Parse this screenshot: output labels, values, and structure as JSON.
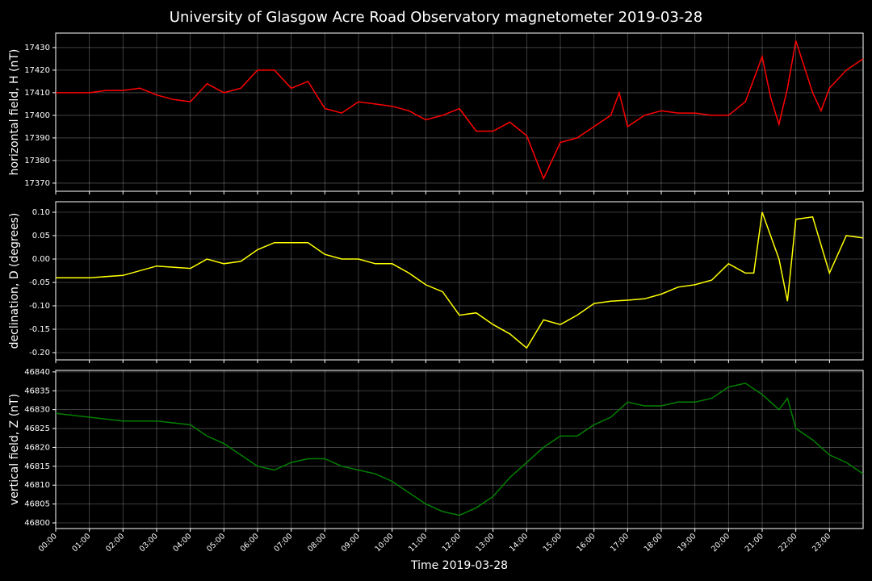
{
  "title": "University of Glasgow Acre Road Observatory magnetometer 2019-03-28",
  "chart_data": [
    {
      "type": "line",
      "ylabel": "horizontal field, H (nT)",
      "color": "#ff0000",
      "grid": true,
      "x": [
        0,
        0.5,
        1,
        1.5,
        2,
        2.5,
        3,
        3.5,
        4,
        4.5,
        5,
        5.5,
        6,
        6.5,
        7,
        7.5,
        8,
        8.5,
        9,
        9.5,
        10,
        10.5,
        11,
        11.5,
        12,
        12.5,
        13,
        13.5,
        14,
        14.5,
        15,
        15.5,
        16,
        16.5,
        16.75,
        17,
        17.5,
        18,
        18.5,
        19,
        19.5,
        20,
        20.5,
        21,
        21.25,
        21.5,
        21.75,
        22,
        22.5,
        22.75,
        23,
        23.5,
        24
      ],
      "values": [
        17410,
        17410,
        17410,
        17411,
        17411,
        17412,
        17409,
        17407,
        17406,
        17414,
        17410,
        17412,
        17420,
        17420,
        17412,
        17415,
        17403,
        17401,
        17406,
        17405,
        17404,
        17402,
        17398,
        17400,
        17403,
        17393,
        17393,
        17397,
        17391,
        17372,
        17388,
        17390,
        17395,
        17400,
        17410,
        17395,
        17400,
        17402,
        17401,
        17401,
        17400,
        17400,
        17406,
        17426,
        17408,
        17396,
        17412,
        17433,
        17410,
        17402,
        17412,
        17420,
        17425
      ],
      "xlim": [
        0,
        24
      ],
      "xticks": [
        0,
        1,
        2,
        3,
        4,
        5,
        6,
        7,
        8,
        9,
        10,
        11,
        12,
        13,
        14,
        15,
        16,
        17,
        18,
        19,
        20,
        21,
        22,
        23
      ],
      "ylim": [
        17366.4,
        17436.4
      ],
      "yticks": [
        17370,
        17380,
        17390,
        17400,
        17410,
        17420,
        17430
      ]
    },
    {
      "type": "line",
      "ylabel": "declination, D (degrees)",
      "color": "#ffff00",
      "grid": true,
      "x": [
        0,
        1,
        2,
        3,
        4,
        4.5,
        5,
        5.5,
        6,
        6.5,
        7,
        7.5,
        8,
        8.5,
        9,
        9.5,
        10,
        10.5,
        11,
        11.5,
        12,
        12.5,
        13,
        13.5,
        14,
        14.5,
        15,
        15.5,
        16,
        16.5,
        17,
        17.5,
        18,
        18.5,
        19,
        19.5,
        20,
        20.5,
        20.75,
        21,
        21.5,
        21.75,
        22,
        22.5,
        23,
        23.5,
        24
      ],
      "values": [
        -0.04,
        -0.04,
        -0.035,
        -0.015,
        -0.02,
        0,
        -0.01,
        -0.005,
        0.02,
        0.035,
        0.035,
        0.035,
        0.01,
        0,
        0,
        -0.01,
        -0.01,
        -0.03,
        -0.055,
        -0.07,
        -0.12,
        -0.115,
        -0.14,
        -0.16,
        -0.19,
        -0.13,
        -0.14,
        -0.12,
        -0.095,
        -0.09,
        -0.088,
        -0.085,
        -0.075,
        -0.06,
        -0.055,
        -0.045,
        -0.01,
        -0.03,
        -0.03,
        0.1,
        0,
        -0.09,
        0.085,
        0.09,
        -0.03,
        0.05,
        0.045
      ],
      "xlim": [
        0,
        24
      ],
      "xticks": [
        0,
        1,
        2,
        3,
        4,
        5,
        6,
        7,
        8,
        9,
        10,
        11,
        12,
        13,
        14,
        15,
        16,
        17,
        18,
        19,
        20,
        21,
        22,
        23
      ],
      "ylim": [
        -0.2155,
        0.1224
      ],
      "yticks": [
        {
          "value": -0.2,
          "label": "-0.20"
        },
        {
          "value": -0.15,
          "label": "-0.15"
        },
        {
          "value": -0.1,
          "label": "-0.10"
        },
        {
          "value": -0.05,
          "label": "-0.05"
        },
        {
          "value": 0,
          "label": "0.00"
        },
        {
          "value": 0.05,
          "label": "0.05"
        },
        {
          "value": 0.1,
          "label": "0.10"
        }
      ]
    },
    {
      "type": "line",
      "ylabel": "vertical field, Z (nT)",
      "xlabel": "Time 2019-03-28",
      "color": "#008000",
      "grid": true,
      "x": [
        0,
        1,
        2,
        3,
        4,
        4.5,
        5,
        5.5,
        6,
        6.5,
        7,
        7.5,
        8,
        8.5,
        9,
        9.5,
        10,
        10.5,
        11,
        11.5,
        12,
        12.5,
        13,
        13.5,
        14,
        14.5,
        15,
        15.5,
        16,
        16.5,
        17,
        17.5,
        18,
        18.5,
        19,
        19.5,
        20,
        20.5,
        21,
        21.5,
        21.75,
        22,
        22.5,
        23,
        23.5,
        24
      ],
      "values": [
        46829,
        46828,
        46827,
        46827,
        46826,
        46823,
        46821,
        46818,
        46815,
        46814,
        46816,
        46817,
        46817,
        46815,
        46814,
        46813,
        46811,
        46808,
        46805,
        46803,
        46802,
        46804,
        46807,
        46812,
        46816,
        46820,
        46823,
        46823,
        46826,
        46828,
        46832,
        46831,
        46831,
        46832,
        46832,
        46833,
        46836,
        46837,
        46834,
        46830,
        46833,
        46825,
        46822,
        46818,
        46816,
        46813
      ],
      "xlim": [
        0,
        24
      ],
      "xticks": [
        {
          "value": 0,
          "label": "00:00"
        },
        {
          "value": 1,
          "label": "01:00"
        },
        {
          "value": 2,
          "label": "02:00"
        },
        {
          "value": 3,
          "label": "03:00"
        },
        {
          "value": 4,
          "label": "04:00"
        },
        {
          "value": 5,
          "label": "05:00"
        },
        {
          "value": 6,
          "label": "06:00"
        },
        {
          "value": 7,
          "label": "07:00"
        },
        {
          "value": 8,
          "label": "08:00"
        },
        {
          "value": 9,
          "label": "09:00"
        },
        {
          "value": 10,
          "label": "10:00"
        },
        {
          "value": 11,
          "label": "11:00"
        },
        {
          "value": 12,
          "label": "12:00"
        },
        {
          "value": 13,
          "label": "13:00"
        },
        {
          "value": 14,
          "label": "14:00"
        },
        {
          "value": 15,
          "label": "15:00"
        },
        {
          "value": 16,
          "label": "16:00"
        },
        {
          "value": 17,
          "label": "17:00"
        },
        {
          "value": 18,
          "label": "18:00"
        },
        {
          "value": 19,
          "label": "19:00"
        },
        {
          "value": 20,
          "label": "20:00"
        },
        {
          "value": 21,
          "label": "21:00"
        },
        {
          "value": 22,
          "label": "22:00"
        },
        {
          "value": 23,
          "label": "23:00"
        }
      ],
      "ylim": [
        46798.5,
        46840.4
      ],
      "yticks": [
        46800,
        46805,
        46810,
        46815,
        46820,
        46825,
        46830,
        46835,
        46840
      ]
    }
  ]
}
